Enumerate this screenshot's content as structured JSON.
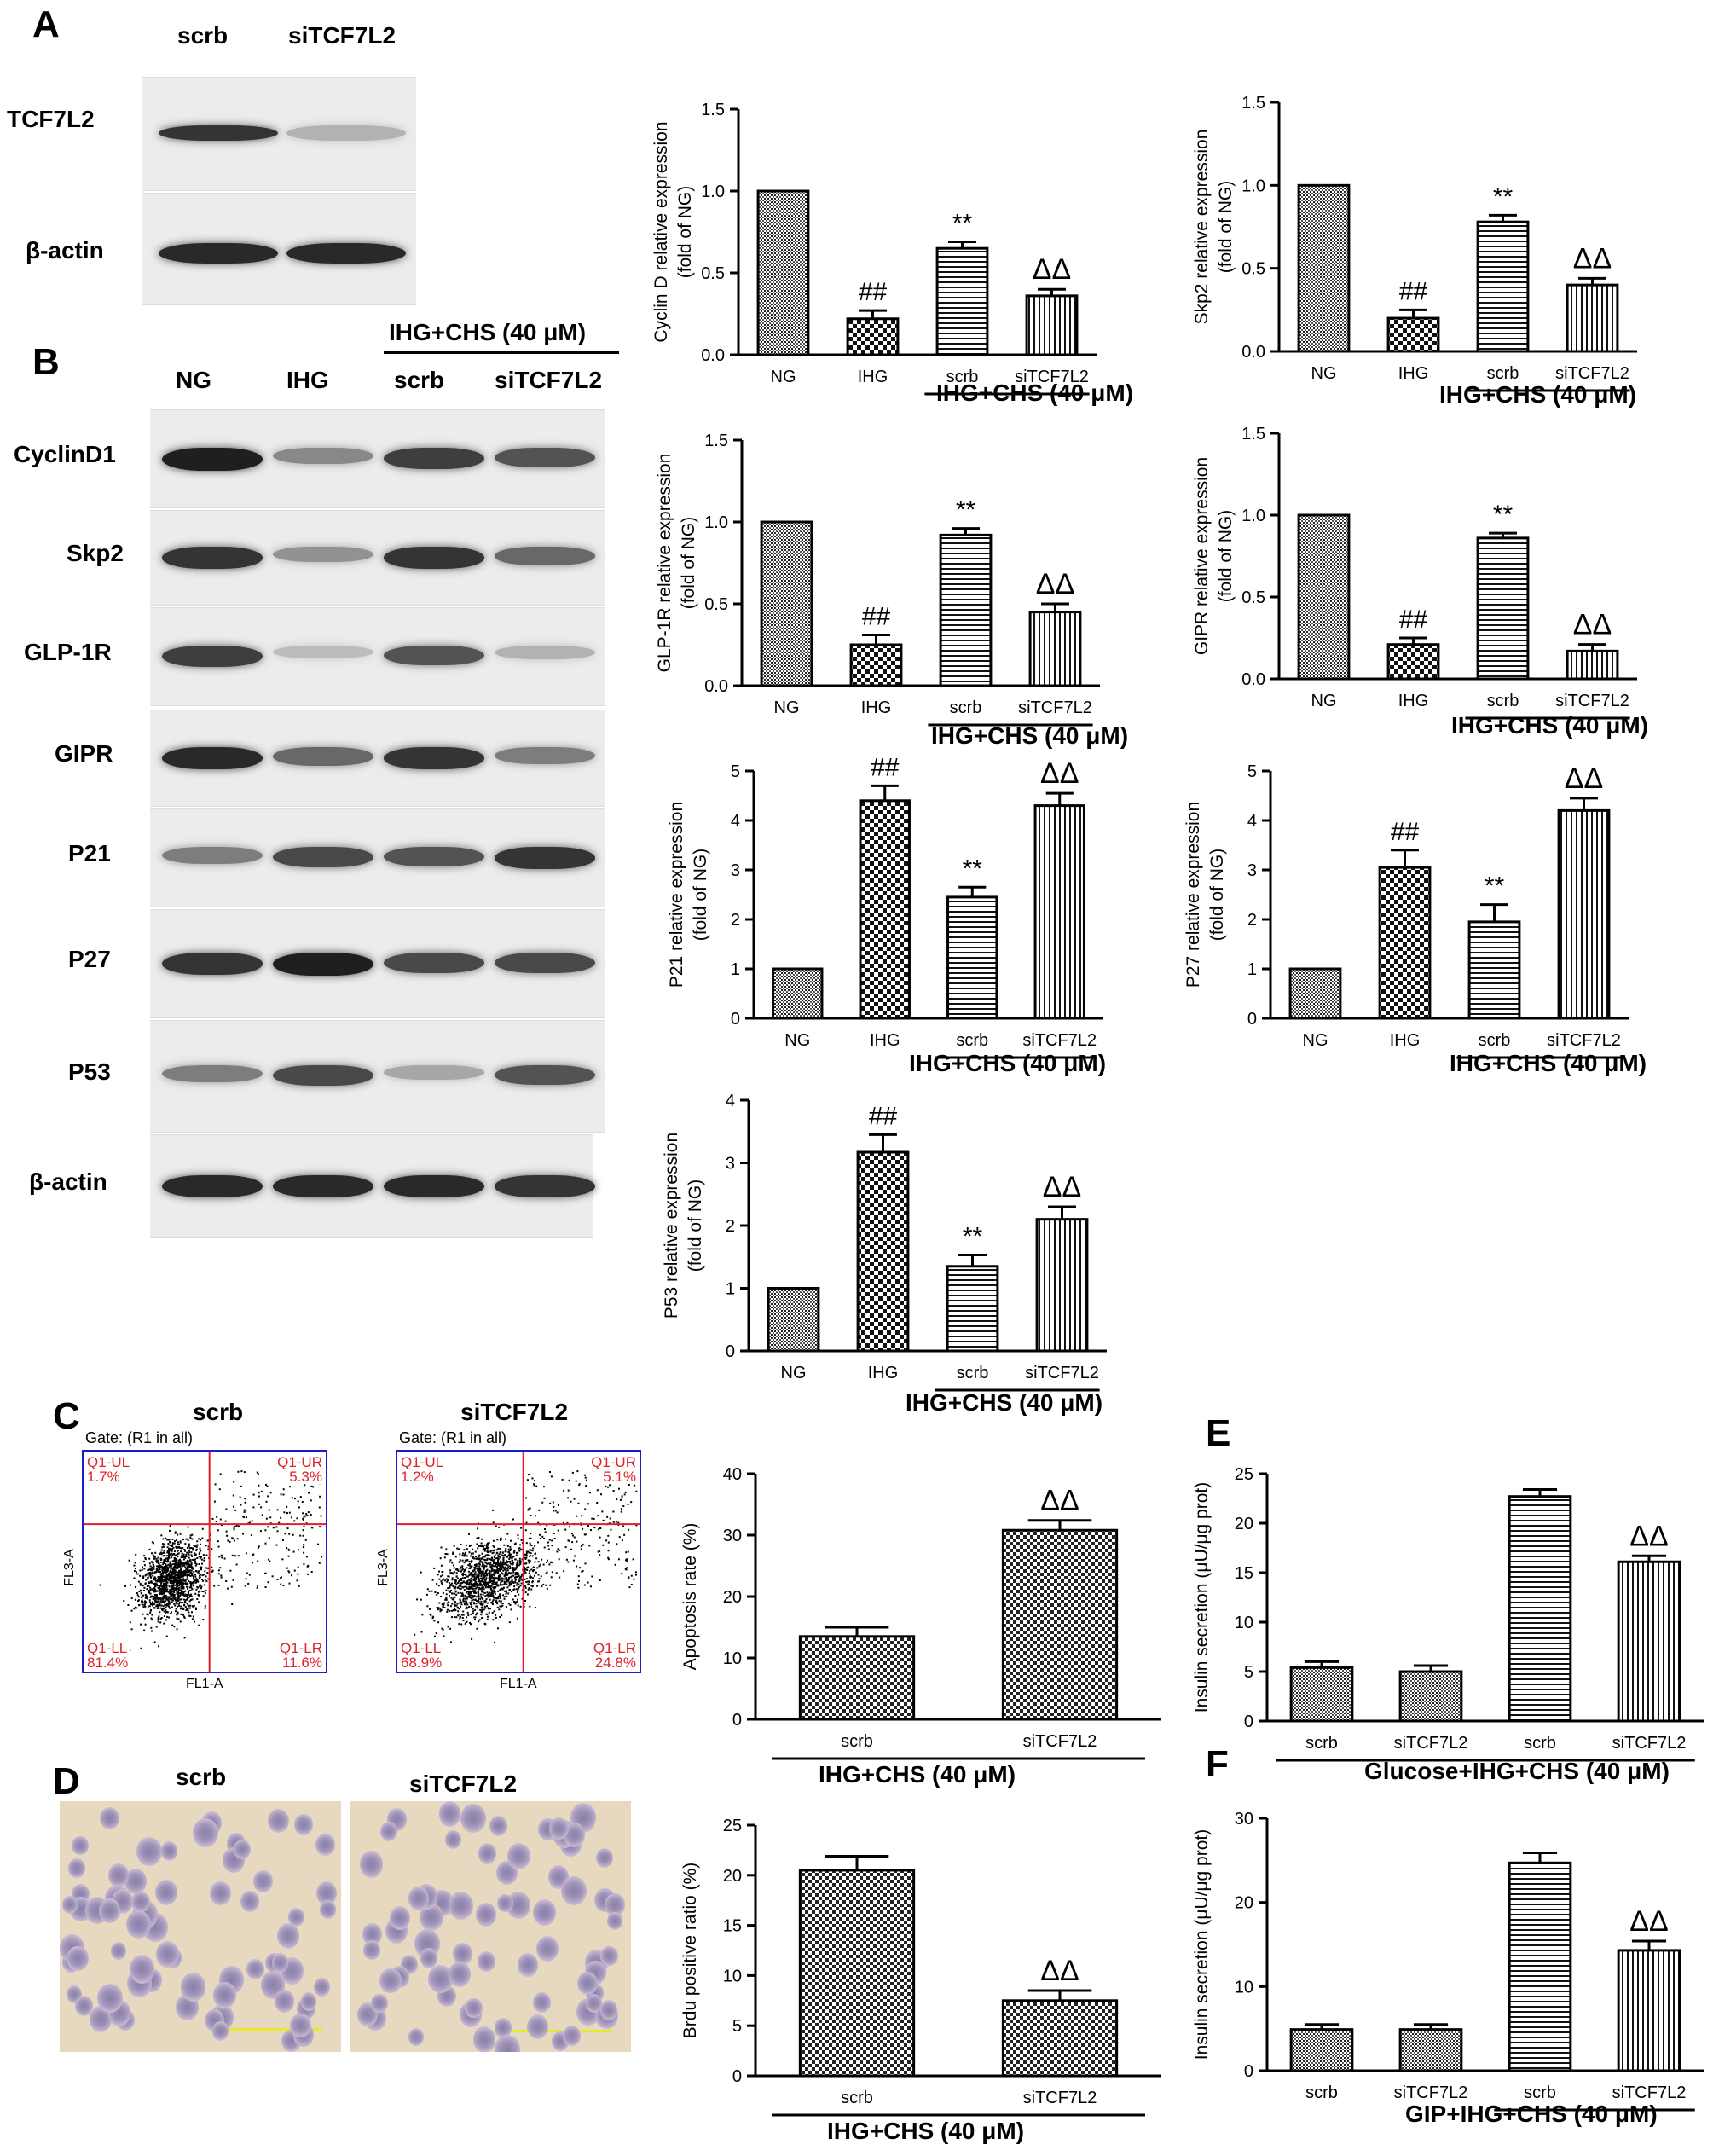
{
  "panels": {
    "a": "A",
    "b": "B",
    "c": "C",
    "d": "D",
    "e": "E",
    "f": "F"
  },
  "blot_a": {
    "lanes": [
      "scrb",
      "siTCF7L2"
    ],
    "rows": [
      {
        "label": "TCF7L2",
        "intensity": [
          0.85,
          0.25
        ]
      },
      {
        "label": "β-actin",
        "intensity": [
          0.9,
          0.9
        ]
      }
    ]
  },
  "blot_b": {
    "header_group": "IHG+CHS (40 μM)",
    "lanes": [
      "NG",
      "IHG",
      "scrb",
      "siTCF7L2"
    ],
    "rows": [
      {
        "label": "CyclinD1",
        "intensity": [
          0.95,
          0.45,
          0.8,
          0.7
        ]
      },
      {
        "label": "Skp2",
        "intensity": [
          0.85,
          0.4,
          0.85,
          0.6
        ]
      },
      {
        "label": "GLP-1R",
        "intensity": [
          0.8,
          0.2,
          0.7,
          0.25
        ]
      },
      {
        "label": "GIPR",
        "intensity": [
          0.9,
          0.6,
          0.85,
          0.5
        ]
      },
      {
        "label": "P21",
        "intensity": [
          0.5,
          0.75,
          0.7,
          0.85
        ]
      },
      {
        "label": "P27",
        "intensity": [
          0.85,
          0.95,
          0.75,
          0.75
        ]
      },
      {
        "label": "P53",
        "intensity": [
          0.5,
          0.75,
          0.3,
          0.7
        ]
      },
      {
        "label": "β-actin",
        "intensity": [
          0.9,
          0.9,
          0.9,
          0.85
        ]
      }
    ]
  },
  "flow": {
    "titles": [
      "scrb",
      "siTCF7L2"
    ],
    "gate": "Gate: (R1 in all)",
    "xaxis": "FL1-A",
    "yaxis": "FL3-A",
    "plots": [
      {
        "ul_name": "Q1-UL",
        "ul": "1.7%",
        "ur_name": "Q1-UR",
        "ur": "5.3%",
        "ll_name": "Q1-LL",
        "ll": "81.4%",
        "lr_name": "Q1-LR",
        "lr": "11.6%"
      },
      {
        "ul_name": "Q1-UL",
        "ul": "1.2%",
        "ur_name": "Q1-UR",
        "ur": "5.1%",
        "ll_name": "Q1-LL",
        "ll": "68.9%",
        "lr_name": "Q1-LR",
        "lr": "24.8%"
      }
    ]
  },
  "micro": {
    "titles": [
      "scrb",
      "siTCF7L2"
    ]
  },
  "chart_data": [
    {
      "id": "cyclind",
      "type": "bar",
      "categories": [
        "NG",
        "IHG",
        "scrb",
        "siTCF7L2"
      ],
      "values": [
        1.0,
        0.22,
        0.65,
        0.36
      ],
      "errors": [
        0,
        0.05,
        0.04,
        0.04
      ],
      "annotations": [
        "",
        "##",
        "**",
        "ΔΔ"
      ],
      "ylabel": "Cyclin D relative expression\n(fold of NG)",
      "ylim": [
        0,
        1.5
      ],
      "yticks": [
        "0.0",
        "0.5",
        "1.0",
        "1.5"
      ],
      "group_label": "IHG+CHS (40 μM)"
    },
    {
      "id": "skp2",
      "type": "bar",
      "categories": [
        "NG",
        "IHG",
        "scrb",
        "siTCF7L2"
      ],
      "values": [
        1.0,
        0.2,
        0.78,
        0.4
      ],
      "errors": [
        0,
        0.05,
        0.04,
        0.04
      ],
      "annotations": [
        "",
        "##",
        "**",
        "ΔΔ"
      ],
      "ylabel": "Skp2 relative expression\n(fold of NG)",
      "ylim": [
        0,
        1.5
      ],
      "yticks": [
        "0.0",
        "0.5",
        "1.0",
        "1.5"
      ],
      "group_label": "IHG+CHS (40 μM)"
    },
    {
      "id": "glp1r",
      "type": "bar",
      "categories": [
        "NG",
        "IHG",
        "scrb",
        "siTCF7L2"
      ],
      "values": [
        1.0,
        0.25,
        0.92,
        0.45
      ],
      "errors": [
        0,
        0.06,
        0.04,
        0.05
      ],
      "annotations": [
        "",
        "##",
        "**",
        "ΔΔ"
      ],
      "ylabel": "GLP-1R relative expression\n(fold of NG)",
      "ylim": [
        0,
        1.5
      ],
      "yticks": [
        "0.0",
        "0.5",
        "1.0",
        "1.5"
      ],
      "group_label": "IHG+CHS (40 μM)"
    },
    {
      "id": "gipr",
      "type": "bar",
      "categories": [
        "NG",
        "IHG",
        "scrb",
        "siTCF7L2"
      ],
      "values": [
        1.0,
        0.21,
        0.86,
        0.17
      ],
      "errors": [
        0,
        0.04,
        0.03,
        0.04
      ],
      "annotations": [
        "",
        "##",
        "**",
        "ΔΔ"
      ],
      "ylabel": "GIPR relative expression\n(fold of NG)",
      "ylim": [
        0,
        1.5
      ],
      "yticks": [
        "0.0",
        "0.5",
        "1.0",
        "1.5"
      ],
      "group_label": "IHG+CHS (40 μM)"
    },
    {
      "id": "p21",
      "type": "bar",
      "categories": [
        "NG",
        "IHG",
        "scrb",
        "siTCF7L2"
      ],
      "values": [
        1.0,
        4.4,
        2.45,
        4.3
      ],
      "errors": [
        0,
        0.3,
        0.2,
        0.25
      ],
      "annotations": [
        "",
        "##",
        "**",
        "ΔΔ"
      ],
      "ylabel": "P21 relative expression\n(fold of NG)",
      "ylim": [
        0,
        5
      ],
      "yticks": [
        "0",
        "1",
        "2",
        "3",
        "4",
        "5"
      ],
      "group_label": "IHG+CHS (40 μM)"
    },
    {
      "id": "p27",
      "type": "bar",
      "categories": [
        "NG",
        "IHG",
        "scrb",
        "siTCF7L2"
      ],
      "values": [
        1.0,
        3.05,
        1.95,
        4.2
      ],
      "errors": [
        0,
        0.35,
        0.35,
        0.25
      ],
      "annotations": [
        "",
        "##",
        "**",
        "ΔΔ"
      ],
      "ylabel": "P27 relative expression\n(fold of NG)",
      "ylim": [
        0,
        5
      ],
      "yticks": [
        "0",
        "1",
        "2",
        "3",
        "4",
        "5"
      ],
      "group_label": "IHG+CHS (40 μM)"
    },
    {
      "id": "p53",
      "type": "bar",
      "categories": [
        "NG",
        "IHG",
        "scrb",
        "siTCF7L2"
      ],
      "values": [
        1.0,
        3.17,
        1.35,
        2.1
      ],
      "errors": [
        0,
        0.28,
        0.18,
        0.2
      ],
      "annotations": [
        "",
        "##",
        "**",
        "ΔΔ"
      ],
      "ylabel": "P53 relative expression\n(fold of NG)",
      "ylim": [
        0,
        4
      ],
      "yticks": [
        "0",
        "1",
        "2",
        "3",
        "4"
      ],
      "group_label": "IHG+CHS (40 μM)"
    },
    {
      "id": "apoptosis",
      "type": "bar",
      "categories": [
        "scrb",
        "siTCF7L2"
      ],
      "values": [
        13.5,
        30.8
      ],
      "errors": [
        1.5,
        1.6
      ],
      "annotations": [
        "",
        "ΔΔ"
      ],
      "ylabel": "Apoptosis rate (%)",
      "ylim": [
        0,
        40
      ],
      "yticks": [
        "0",
        "10",
        "20",
        "30",
        "40"
      ],
      "group_label": "IHG+CHS (40 μM)"
    },
    {
      "id": "brdu",
      "type": "bar",
      "categories": [
        "scrb",
        "siTCF7L2"
      ],
      "values": [
        20.5,
        7.5
      ],
      "errors": [
        1.4,
        1.0
      ],
      "annotations": [
        "",
        "ΔΔ"
      ],
      "ylabel": "Brdu positive ratio (%)",
      "ylim": [
        0,
        25
      ],
      "yticks": [
        "0",
        "5",
        "10",
        "15",
        "20",
        "25"
      ],
      "group_label": "IHG+CHS (40 μM)"
    },
    {
      "id": "insulin_glucose",
      "type": "bar",
      "categories": [
        "scrb",
        "siTCF7L2",
        "scrb",
        "siTCF7L2"
      ],
      "values": [
        5.4,
        5.0,
        22.7,
        16.1
      ],
      "errors": [
        0.6,
        0.6,
        0.7,
        0.6
      ],
      "annotations": [
        "",
        "",
        "",
        "ΔΔ"
      ],
      "ylabel": "Insulin secretion (μU/μg prot)",
      "ylim": [
        0,
        25
      ],
      "yticks": [
        "0",
        "5",
        "10",
        "15",
        "20",
        "25"
      ],
      "group_label": "Glucose+IHG+CHS (40 μM)"
    },
    {
      "id": "insulin_gip",
      "type": "bar",
      "categories": [
        "scrb",
        "siTCF7L2",
        "scrb",
        "siTCF7L2"
      ],
      "values": [
        4.9,
        4.9,
        24.7,
        14.3
      ],
      "errors": [
        0.6,
        0.6,
        1.2,
        1.1
      ],
      "annotations": [
        "",
        "",
        "",
        "ΔΔ"
      ],
      "ylabel": "Insulin secretion (μU/μg prot)",
      "ylim": [
        0,
        30
      ],
      "yticks": [
        "0",
        "10",
        "20",
        "30"
      ],
      "group_label": "GIP+IHG+CHS (40 μM)"
    }
  ]
}
